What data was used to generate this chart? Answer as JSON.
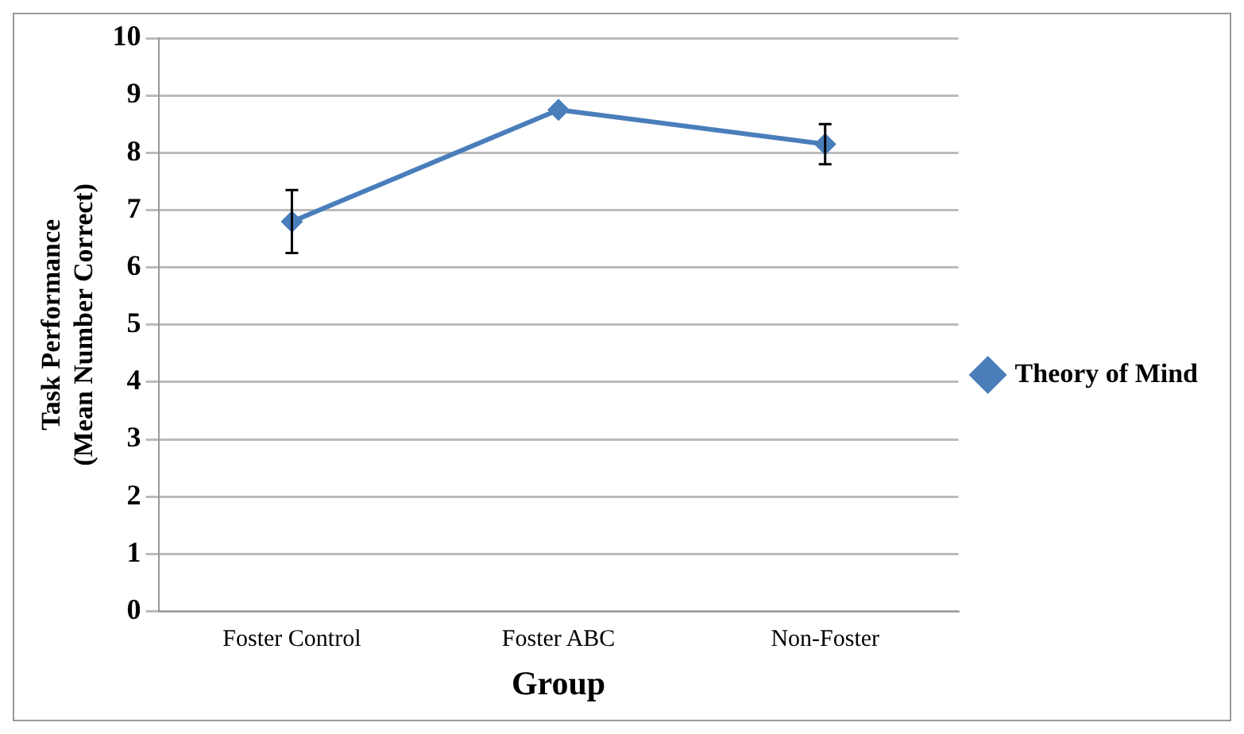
{
  "chart_data": {
    "type": "line",
    "xlabel": "Group",
    "ylabel": "Task Performance\n(Mean Number Correct)",
    "categories": [
      "Foster Control",
      "Foster ABC",
      "Non-Foster"
    ],
    "series": [
      {
        "name": "Theory of Mind",
        "color": "#4a7ebb",
        "values": [
          6.8,
          8.75,
          8.15
        ],
        "errors": [
          0.55,
          null,
          0.35
        ]
      }
    ],
    "ylim": [
      0,
      10
    ],
    "yticks": [
      0,
      1,
      2,
      3,
      4,
      5,
      6,
      7,
      8,
      9,
      10
    ],
    "grid": "y",
    "legend": "right",
    "marker": "diamond",
    "line_style": "solid"
  }
}
